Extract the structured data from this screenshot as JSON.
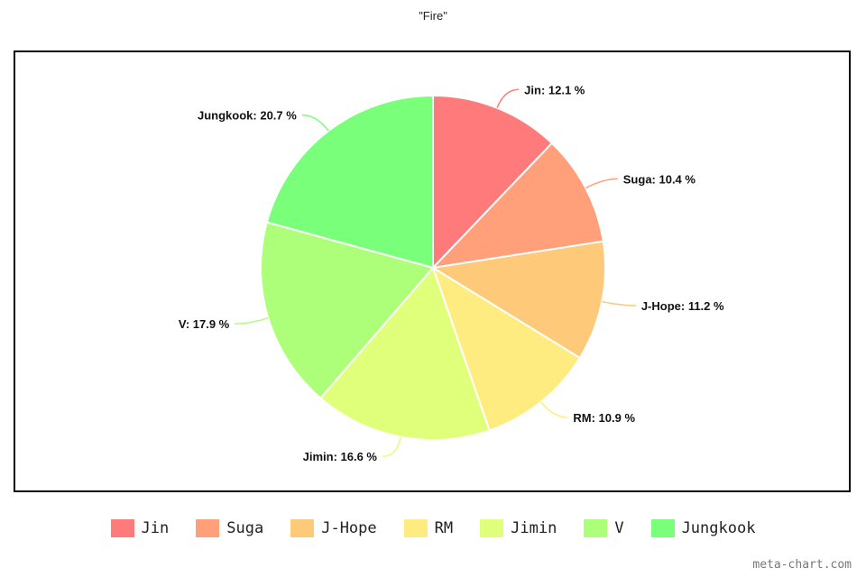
{
  "chart_data": {
    "type": "pie",
    "title": "\"Fire\"",
    "unit": "%",
    "slices": [
      {
        "label": "Jin",
        "value": 12.1,
        "color": "#ff7a7a"
      },
      {
        "label": "Suga",
        "value": 10.4,
        "color": "#ffa07a"
      },
      {
        "label": "J-Hope",
        "value": 11.2,
        "color": "#ffc97a"
      },
      {
        "label": "RM",
        "value": 10.9,
        "color": "#ffec80"
      },
      {
        "label": "Jimin",
        "value": 16.6,
        "color": "#e0ff7a"
      },
      {
        "label": "V",
        "value": 17.9,
        "color": "#adff7a"
      },
      {
        "label": "Jungkook",
        "value": 20.7,
        "color": "#7aff7a"
      }
    ],
    "legend_position": "bottom"
  },
  "watermark": "meta-chart.com"
}
